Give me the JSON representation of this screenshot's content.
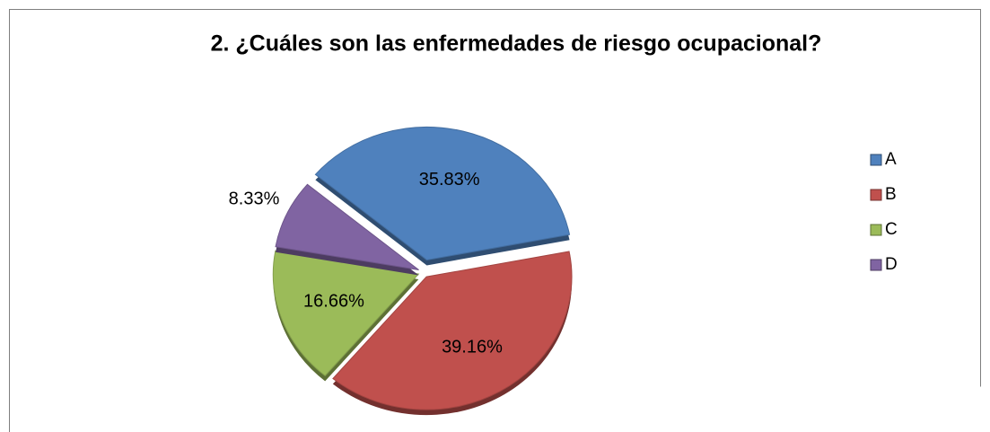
{
  "chart_data": {
    "type": "pie",
    "title": "2. ¿Cuáles son las enfermedades de riesgo ocupacional?",
    "categories": [
      "A",
      "B",
      "C",
      "D"
    ],
    "values": [
      35.83,
      39.16,
      16.66,
      8.33
    ],
    "value_labels": [
      "35.83%",
      "39.16%",
      "16.66%",
      "8.33%"
    ],
    "colors": [
      "#4f81bd",
      "#c0504d",
      "#9bbb59",
      "#8064a2"
    ],
    "legend": "right"
  }
}
